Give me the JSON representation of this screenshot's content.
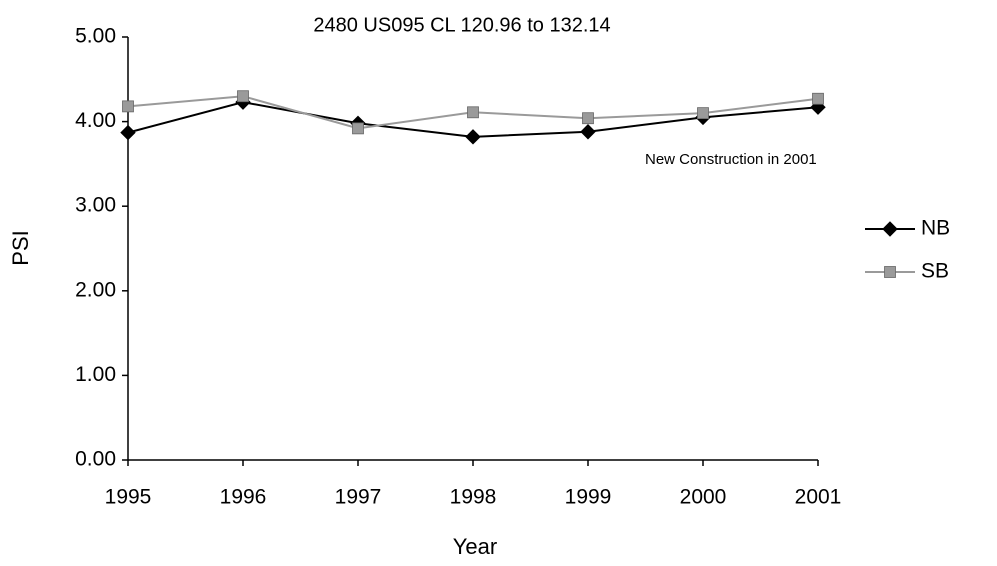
{
  "chart_data": {
    "type": "line",
    "title": "2480 US095 CL 120.96 to 132.14",
    "x_label": "Year",
    "y_label": "PSI",
    "annotation": "New Construction in 2001",
    "x": [
      1995,
      1996,
      1997,
      1998,
      1999,
      2000,
      2001
    ],
    "xlim": [
      1995,
      2001
    ],
    "xticks": [
      1995,
      1996,
      1997,
      1998,
      1999,
      2000,
      2001
    ],
    "ylim": [
      0,
      5
    ],
    "yticks": [
      {
        "value": 0,
        "label": "0.00"
      },
      {
        "value": 1,
        "label": "1.00"
      },
      {
        "value": 2,
        "label": "2.00"
      },
      {
        "value": 3,
        "label": "3.00"
      },
      {
        "value": 4,
        "label": "4.00"
      },
      {
        "value": 5,
        "label": "5.00"
      }
    ],
    "grid": false,
    "legend": "right",
    "series": [
      {
        "name": "NB",
        "color": "#000000",
        "marker": "diamond",
        "values": [
          3.87,
          4.23,
          3.98,
          3.82,
          3.88,
          4.05,
          4.17
        ]
      },
      {
        "name": "SB",
        "color": "#9a9a9a",
        "marker": "square",
        "values": [
          4.18,
          4.3,
          3.92,
          4.11,
          4.04,
          4.1,
          4.27
        ]
      }
    ]
  }
}
